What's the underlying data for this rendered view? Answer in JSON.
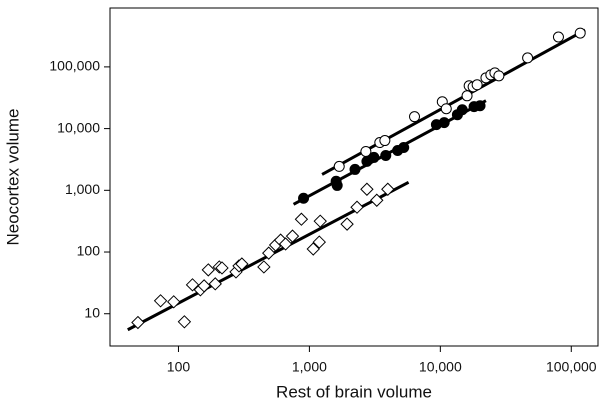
{
  "chart_data": {
    "type": "scatter",
    "x_label": "Rest of brain volume",
    "y_label": "Neocortex volume",
    "log_x": true,
    "log_y": true,
    "xlim": [
      30,
      160000
    ],
    "ylim": [
      3,
      900000
    ],
    "xticks": [
      100,
      {
        "value": 1000,
        "label": "1,000"
      },
      {
        "value": 10000,
        "label": "10,000"
      },
      {
        "value": 100000,
        "label": "100,000"
      }
    ],
    "yticks": [
      10,
      100,
      {
        "value": 1000,
        "label": "1,000"
      },
      {
        "value": 10000,
        "label": "10,000"
      },
      {
        "value": 100000,
        "label": "100,000"
      }
    ],
    "color": "#000000",
    "series": [
      {
        "marker": "circle-open",
        "x": [
          1690,
          2700,
          3450,
          3770,
          6350,
          10350,
          11100,
          16000,
          16600,
          17800,
          19100,
          22300,
          24300,
          26100,
          28000,
          46400,
          79800,
          117000
        ],
        "values": [
          2440,
          4260,
          5950,
          6400,
          15600,
          27200,
          21000,
          34000,
          49400,
          47500,
          51300,
          66500,
          74300,
          80000,
          71600,
          140000,
          305000,
          353000
        ]
      },
      {
        "marker": "circle-filled",
        "x": [
          902,
          1600,
          1630,
          2230,
          2750,
          3110,
          3830,
          4720,
          5250,
          9330,
          10700,
          13500,
          14700,
          18100,
          20100
        ],
        "values": [
          743,
          1400,
          1200,
          2180,
          2940,
          3410,
          3670,
          4420,
          4940,
          11600,
          12500,
          16800,
          20200,
          22700,
          23500
        ]
      },
      {
        "marker": "diamond-open",
        "x": [
          49,
          73,
          92,
          111,
          128,
          147,
          157,
          169,
          191,
          205,
          215,
          275,
          290,
          305,
          449,
          489,
          552,
          603,
          658,
          743,
          869,
          1070,
          1190,
          1210,
          1940,
          2310,
          2750,
          3270,
          3970
        ],
        "values": [
          7.2,
          16.2,
          15.6,
          7.4,
          29.4,
          24.4,
          28.3,
          51.3,
          30.5,
          57.3,
          55.2,
          47.6,
          59.5,
          64,
          57.3,
          96,
          130,
          156,
          135,
          181,
          340,
          112,
          145,
          316,
          283,
          532,
          1040,
          690,
          1040
        ]
      }
    ],
    "fits": [
      {
        "x": [
          1250,
          127600
        ],
        "values": [
          1810,
          395000
        ]
      },
      {
        "x": [
          757,
          22300
        ],
        "values": [
          594,
          28300
        ]
      },
      {
        "x": [
          41,
          5720
        ],
        "values": [
          5.5,
          1350
        ]
      }
    ]
  }
}
